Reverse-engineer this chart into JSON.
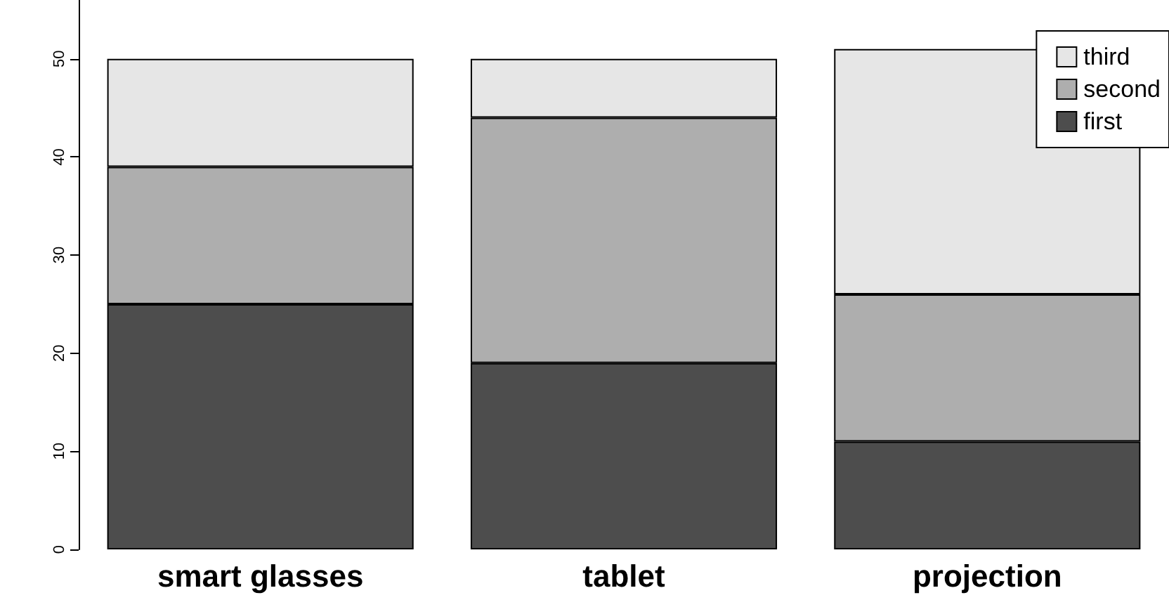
{
  "chart_data": {
    "type": "bar",
    "stacked": true,
    "categories": [
      "smart glasses",
      "tablet",
      "projection"
    ],
    "series": [
      {
        "name": "first",
        "color": "#4d4d4d",
        "values": [
          25,
          19,
          11
        ]
      },
      {
        "name": "second",
        "color": "#aeaeae",
        "values": [
          14,
          25,
          15
        ]
      },
      {
        "name": "third",
        "color": "#e6e6e6",
        "values": [
          11,
          6,
          25
        ]
      }
    ],
    "ylim": [
      0,
      56
    ],
    "yticks": [
      0,
      10,
      20,
      30,
      40,
      50
    ],
    "grid": false,
    "legend": "top right"
  }
}
